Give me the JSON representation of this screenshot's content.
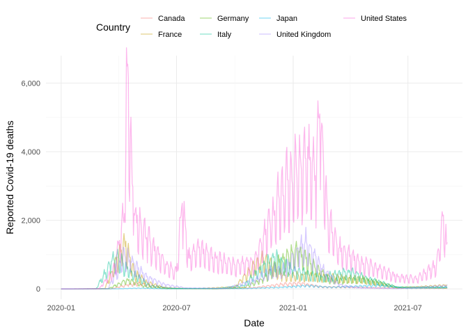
{
  "chart_data": {
    "type": "line",
    "xlabel": "Date",
    "ylabel": "Reported Covid-19 deaths",
    "xlim": [
      "2020-01-01",
      "2021-09-01"
    ],
    "ylim": [
      0,
      6800
    ],
    "x_ticks": [
      "2020-01",
      "2020-07",
      "2021-01",
      "2021-07"
    ],
    "y_ticks": [
      0,
      2000,
      4000,
      6000
    ],
    "y_tick_labels": [
      "0",
      "2,000",
      "4,000",
      "6,000"
    ],
    "grid": true,
    "legend": {
      "title": "Country",
      "placement": "top"
    },
    "line_opacity": 0.45,
    "series": [
      {
        "name": "Canada",
        "color": "#F8766D",
        "points": [
          [
            "2020-01-01",
            0
          ],
          [
            "2020-03-20",
            5
          ],
          [
            "2020-04-15",
            120
          ],
          [
            "2020-05-05",
            160
          ],
          [
            "2020-06-01",
            70
          ],
          [
            "2020-07-01",
            15
          ],
          [
            "2020-09-01",
            5
          ],
          [
            "2020-11-01",
            40
          ],
          [
            "2020-12-15",
            140
          ],
          [
            "2021-01-15",
            160
          ],
          [
            "2021-02-15",
            60
          ],
          [
            "2021-04-15",
            50
          ],
          [
            "2021-06-01",
            25
          ],
          [
            "2021-08-31",
            20
          ]
        ]
      },
      {
        "name": "France",
        "color": "#C49A00",
        "points": [
          [
            "2020-01-01",
            0
          ],
          [
            "2020-03-10",
            10
          ],
          [
            "2020-04-01",
            1000
          ],
          [
            "2020-04-10",
            1400
          ],
          [
            "2020-04-25",
            500
          ],
          [
            "2020-05-15",
            200
          ],
          [
            "2020-06-15",
            20
          ],
          [
            "2020-08-01",
            10
          ],
          [
            "2020-10-01",
            60
          ],
          [
            "2020-11-01",
            700
          ],
          [
            "2020-11-15",
            900
          ],
          [
            "2020-12-15",
            400
          ],
          [
            "2021-01-15",
            400
          ],
          [
            "2021-03-01",
            350
          ],
          [
            "2021-04-15",
            300
          ],
          [
            "2021-06-15",
            30
          ],
          [
            "2021-08-31",
            110
          ]
        ]
      },
      {
        "name": "Germany",
        "color": "#53B400",
        "points": [
          [
            "2020-01-01",
            0
          ],
          [
            "2020-03-15",
            5
          ],
          [
            "2020-04-15",
            270
          ],
          [
            "2020-05-15",
            60
          ],
          [
            "2020-06-15",
            10
          ],
          [
            "2020-09-01",
            5
          ],
          [
            "2020-10-15",
            40
          ],
          [
            "2020-11-15",
            300
          ],
          [
            "2020-12-15",
            900
          ],
          [
            "2021-01-10",
            1100
          ],
          [
            "2021-02-01",
            700
          ],
          [
            "2021-03-01",
            250
          ],
          [
            "2021-04-20",
            300
          ],
          [
            "2021-05-15",
            200
          ],
          [
            "2021-06-15",
            50
          ],
          [
            "2021-08-31",
            30
          ]
        ]
      },
      {
        "name": "Italy",
        "color": "#00C094",
        "points": [
          [
            "2020-01-01",
            0
          ],
          [
            "2020-02-25",
            5
          ],
          [
            "2020-03-20",
            800
          ],
          [
            "2020-03-28",
            950
          ],
          [
            "2020-04-20",
            500
          ],
          [
            "2020-05-20",
            100
          ],
          [
            "2020-06-15",
            40
          ],
          [
            "2020-07-01",
            15
          ],
          [
            "2020-09-01",
            10
          ],
          [
            "2020-10-15",
            100
          ],
          [
            "2020-11-15",
            700
          ],
          [
            "2020-12-05",
            900
          ],
          [
            "2021-01-01",
            550
          ],
          [
            "2021-02-15",
            350
          ],
          [
            "2021-04-01",
            500
          ],
          [
            "2021-05-01",
            300
          ],
          [
            "2021-06-15",
            50
          ],
          [
            "2021-08-31",
            60
          ]
        ]
      },
      {
        "name": "Japan",
        "color": "#00B6EB",
        "points": [
          [
            "2020-01-01",
            0
          ],
          [
            "2020-04-01",
            5
          ],
          [
            "2020-05-01",
            25
          ],
          [
            "2020-06-15",
            5
          ],
          [
            "2020-08-15",
            15
          ],
          [
            "2020-10-15",
            10
          ],
          [
            "2020-12-15",
            50
          ],
          [
            "2021-01-25",
            100
          ],
          [
            "2021-03-01",
            50
          ],
          [
            "2021-05-15",
            110
          ],
          [
            "2021-07-01",
            20
          ],
          [
            "2021-08-31",
            40
          ]
        ]
      },
      {
        "name": "United Kingdom",
        "color": "#A58AFF",
        "points": [
          [
            "2020-01-01",
            0
          ],
          [
            "2020-03-15",
            10
          ],
          [
            "2020-04-10",
            1000
          ],
          [
            "2020-04-20",
            800
          ],
          [
            "2020-05-15",
            350
          ],
          [
            "2020-06-15",
            120
          ],
          [
            "2020-07-15",
            30
          ],
          [
            "2020-09-15",
            15
          ],
          [
            "2020-11-01",
            250
          ],
          [
            "2020-11-25",
            550
          ],
          [
            "2020-12-20",
            600
          ],
          [
            "2021-01-20",
            1400
          ],
          [
            "2021-02-15",
            600
          ],
          [
            "2021-03-15",
            120
          ],
          [
            "2021-04-15",
            30
          ],
          [
            "2021-06-15",
            10
          ],
          [
            "2021-08-31",
            100
          ]
        ]
      },
      {
        "name": "United States",
        "color": "#FB61D7",
        "points": [
          [
            "2020-01-01",
            0
          ],
          [
            "2020-03-01",
            5
          ],
          [
            "2020-03-25",
            600
          ],
          [
            "2020-04-10",
            2200
          ],
          [
            "2020-04-14",
            6500
          ],
          [
            "2020-04-25",
            2200
          ],
          [
            "2020-05-15",
            1500
          ],
          [
            "2020-06-15",
            700
          ],
          [
            "2020-07-01",
            500
          ],
          [
            "2020-07-10",
            2500
          ],
          [
            "2020-07-20",
            900
          ],
          [
            "2020-08-05",
            1200
          ],
          [
            "2020-09-01",
            900
          ],
          [
            "2020-10-01",
            700
          ],
          [
            "2020-11-01",
            800
          ],
          [
            "2020-12-01",
            2300
          ],
          [
            "2020-12-20",
            3100
          ],
          [
            "2021-01-10",
            3600
          ],
          [
            "2021-01-25",
            3800
          ],
          [
            "2021-02-05",
            3300
          ],
          [
            "2021-02-12",
            5100
          ],
          [
            "2021-02-25",
            2000
          ],
          [
            "2021-03-15",
            1200
          ],
          [
            "2021-04-15",
            800
          ],
          [
            "2021-05-15",
            600
          ],
          [
            "2021-06-15",
            350
          ],
          [
            "2021-07-15",
            300
          ],
          [
            "2021-08-15",
            700
          ],
          [
            "2021-08-26",
            2150
          ],
          [
            "2021-08-31",
            1300
          ]
        ]
      }
    ]
  }
}
